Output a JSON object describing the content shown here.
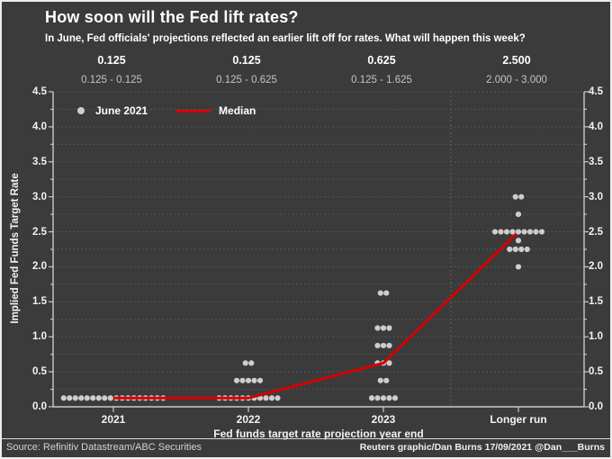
{
  "header": {
    "title": "How soon will the Fed lift rates?",
    "subtitle": "In June, Fed officials' projections reflected an earlier lift off for rates. What will happen this week?"
  },
  "legend": {
    "dot_label": "June 2021",
    "line_label": "Median"
  },
  "annotations": {
    "medians": [
      "0.125",
      "0.125",
      "0.625",
      "2.500"
    ],
    "ranges": [
      "0.125 - 0.125",
      "0.125 - 0.625",
      "0.125 - 1.625",
      "2.000 - 3.000"
    ]
  },
  "chart_data": {
    "type": "scatter",
    "title": "How soon will the Fed lift rates?",
    "xlabel": "Fed funds target rate projection year end",
    "ylabel": "Implied Fed Funds Target Rate",
    "ylim": [
      0,
      4.5
    ],
    "yticks": [
      "0.0",
      "0.5",
      "1.0",
      "1.5",
      "2.0",
      "2.5",
      "3.0",
      "3.5",
      "4.0",
      "4.5"
    ],
    "grid": "dotted horizontal lines every 0.25; dotted vertical separator before Longer run",
    "legend_position": "top-left inside plot",
    "categories": [
      "2021",
      "2022",
      "2023",
      "Longer run"
    ],
    "projections": [
      {
        "category": "2021",
        "median": 0.125,
        "range_label": "0.125 - 0.125",
        "dots": [
          {
            "rate": 0.125,
            "count": 18
          }
        ]
      },
      {
        "category": "2022",
        "median": 0.125,
        "range_label": "0.125 - 0.625",
        "dots": [
          {
            "rate": 0.125,
            "count": 11
          },
          {
            "rate": 0.375,
            "count": 5
          },
          {
            "rate": 0.625,
            "count": 2
          }
        ]
      },
      {
        "category": "2023",
        "median": 0.625,
        "range_label": "0.125 - 1.625",
        "dots": [
          {
            "rate": 0.125,
            "count": 5
          },
          {
            "rate": 0.375,
            "count": 2
          },
          {
            "rate": 0.625,
            "count": 3
          },
          {
            "rate": 0.875,
            "count": 3
          },
          {
            "rate": 1.125,
            "count": 3
          },
          {
            "rate": 1.625,
            "count": 2
          }
        ]
      },
      {
        "category": "Longer run",
        "median": 2.5,
        "range_label": "2.000 - 3.000",
        "dots": [
          {
            "rate": 2.0,
            "count": 1
          },
          {
            "rate": 2.25,
            "count": 4
          },
          {
            "rate": 2.375,
            "count": 1
          },
          {
            "rate": 2.5,
            "count": 9
          },
          {
            "rate": 2.75,
            "count": 1
          },
          {
            "rate": 3.0,
            "count": 2
          }
        ]
      }
    ],
    "median_series": {
      "name": "Median",
      "values": [
        0.125,
        0.125,
        0.625,
        2.5
      ]
    }
  },
  "footer": {
    "source": "Source: Refinitiv Datastream/ABC Securities",
    "credit": "Reuters graphic/Dan Burns 17/09/2021 @Dan___Burns"
  },
  "colors": {
    "background": "#3b3b3b",
    "dot": "#cdcdcd",
    "median_red": "#d60000",
    "grid": "#5c5c5c",
    "separator": "#6e6e6e",
    "axis": "#c9c9c9",
    "text": "#ffffff",
    "muted_text": "#c4c4c4",
    "border": "#ececec"
  }
}
